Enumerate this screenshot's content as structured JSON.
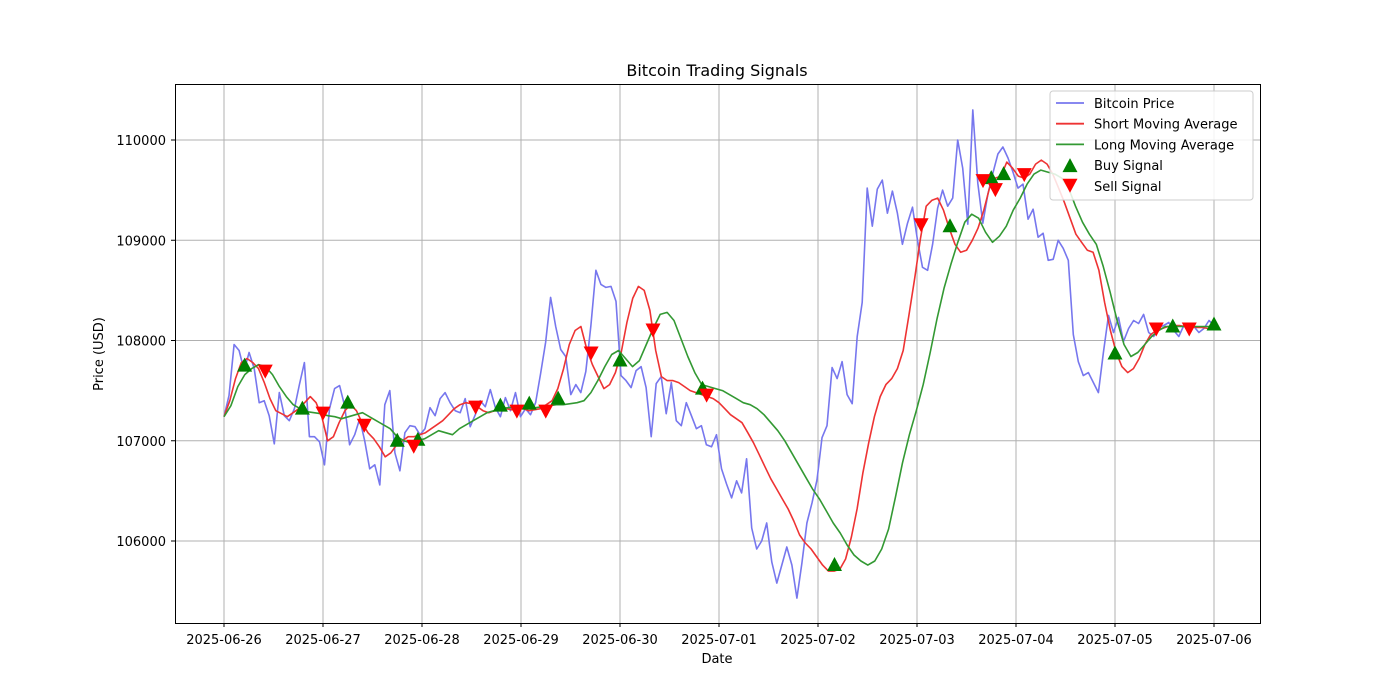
{
  "chart_data": {
    "type": "line",
    "title": "Bitcoin Trading Signals",
    "xlabel": "Date",
    "ylabel": "Price (USD)",
    "x_start": "2025-06-26T00:00",
    "x_step_hours": 2,
    "xlim": [
      "2025-06-25T12:00",
      "2025-07-06T11:00"
    ],
    "ylim": [
      105180,
      110550
    ],
    "x_ticks": [
      "2025-06-26",
      "2025-06-27",
      "2025-06-28",
      "2025-06-29",
      "2025-06-30",
      "2025-07-01",
      "2025-07-02",
      "2025-07-03",
      "2025-07-04",
      "2025-07-05",
      "2025-07-06"
    ],
    "y_ticks": [
      106000,
      107000,
      108000,
      109000,
      110000
    ],
    "grid": true,
    "legend_position": "upper right",
    "series": [
      {
        "name": "Bitcoin Price",
        "color": "#7777ee",
        "values": [
          107240,
          107450,
          107960,
          107900,
          107700,
          107880,
          107720,
          107380,
          107400,
          107250,
          106970,
          107480,
          107250,
          107200,
          107320,
          107560,
          107780,
          107040,
          107040,
          106990,
          106760,
          107320,
          107520,
          107550,
          107350,
          106960,
          107060,
          107220,
          107000,
          106720,
          106760,
          106560,
          107360,
          107500,
          106880,
          106700,
          107080,
          107150,
          107140,
          107060,
          107120,
          107330,
          107250,
          107420,
          107480,
          107380,
          107300,
          107280,
          107420,
          107140,
          107260,
          107400,
          107340,
          107510,
          107330,
          107240,
          107430,
          107300,
          107480,
          107240,
          107320,
          107260,
          107380,
          107670,
          107980,
          108430,
          108140,
          107910,
          107840,
          107460,
          107560,
          107480,
          107690,
          108150,
          108700,
          108560,
          108530,
          108540,
          108390,
          107650,
          107600,
          107530,
          107700,
          107740,
          107530,
          107040,
          107570,
          107640,
          107270,
          107580,
          107200,
          107150,
          107380,
          107250,
          107120,
          107150,
          106960,
          106940,
          107060,
          106720,
          106570,
          106430,
          106600,
          106480,
          106820,
          106130,
          105920,
          106000,
          106180,
          105790,
          105580,
          105760,
          105940,
          105760,
          105430,
          105780,
          106180,
          106380,
          106610,
          107030,
          107150
        ],
        "values_tail": [
          107730,
          107620,
          107790,
          107460,
          107370,
          108040,
          108380,
          109520,
          109140,
          109510,
          109600,
          109270,
          109490,
          109270,
          108960,
          109170,
          109330,
          109000,
          108730,
          108700,
          108960,
          109320,
          109500,
          109340,
          109420,
          110000,
          109720,
          109160,
          110300,
          109570,
          109170,
          109460,
          109670,
          109860,
          109930,
          109820,
          109680,
          109520,
          109560,
          109210,
          109310,
          109030,
          109070,
          108800,
          108810,
          109000,
          108920,
          108800,
          108060,
          107790,
          107650,
          107680,
          107580,
          107480,
          107880,
          108250,
          108080,
          108230,
          107990,
          108120,
          108200,
          108170,
          108260,
          108080,
          108040,
          108130,
          108150,
          108180,
          108100,
          108040,
          108150,
          108110,
          108140,
          108080,
          108120,
          108200,
          108150
        ],
        "note": "values_tail continues values: together they form the full hourly-ish price trace across the date range"
      },
      {
        "name": "Short Moving Average",
        "color": "#ee3333",
        "values": [
          107240,
          107400,
          107620,
          107780,
          107820,
          107780,
          107720,
          107580,
          107420,
          107300,
          107270,
          107240,
          107280,
          107320,
          107380,
          107440,
          107380,
          107240,
          107000,
          107040,
          107180,
          107300,
          107360,
          107300,
          107180,
          107080,
          107020,
          106940,
          106840,
          106880,
          106960,
          107000,
          107040,
          107040,
          107060,
          107080,
          107120,
          107160,
          107200,
          107260,
          107320,
          107360,
          107380,
          107370,
          107340,
          107300,
          107280,
          107300,
          107330,
          107320,
          107310,
          107330,
          107320,
          107300,
          107310,
          107320,
          107360,
          107400,
          107520,
          107720,
          107960,
          108100,
          108140,
          107920,
          107760,
          107640,
          107520,
          107560,
          107680,
          107880,
          108180,
          108420,
          108540,
          108500,
          108300,
          107900,
          107640,
          107600,
          107600,
          107580,
          107540,
          107500,
          107480,
          107460,
          107440,
          107420,
          107380,
          107320,
          107260,
          107220,
          107180,
          107080,
          106980,
          106860,
          106740,
          106620,
          106520,
          106420,
          106320,
          106200,
          106060,
          105980,
          105920,
          105840,
          105760,
          105700,
          105700,
          105720,
          105820,
          106040,
          106320,
          106680,
          106980,
          107240,
          107440,
          107560,
          107620,
          107720,
          107900,
          108250
        ],
        "values_tail": [
          108620,
          109020,
          109340,
          109400,
          109420,
          109300,
          109120,
          108960,
          108880,
          108900,
          109000,
          109120,
          109300,
          109520,
          109620,
          109640,
          109780,
          109720,
          109640,
          109620,
          109660,
          109760,
          109800,
          109760,
          109660,
          109520,
          109380,
          109220,
          109060,
          108980,
          108900,
          108880,
          108700,
          108380,
          108100,
          107880,
          107740,
          107680,
          107720,
          107820,
          107960,
          108060,
          108100,
          108120,
          108140,
          108150,
          108150,
          108140,
          108140,
          108130,
          108130,
          108120,
          108120
        ]
      },
      {
        "name": "Long Moving Average",
        "color": "#339933",
        "values": [
          107240,
          107350,
          107540,
          107660,
          107720,
          107760,
          107740,
          107660,
          107540,
          107440,
          107360,
          107320,
          107290,
          107280,
          107270,
          107250,
          107240,
          107220,
          107240,
          107260,
          107280,
          107240,
          107200,
          107160,
          107120,
          107040,
          107000,
          106980,
          107000,
          107020,
          107060,
          107100,
          107080,
          107060,
          107120,
          107160,
          107200,
          107240,
          107280,
          107300,
          107320,
          107330,
          107340,
          107350,
          107340,
          107330,
          107340,
          107350,
          107360,
          107360,
          107370,
          107380,
          107400,
          107480,
          107600,
          107740,
          107860,
          107900,
          107820,
          107740,
          107800,
          107960,
          108120,
          108260,
          108280,
          108200,
          108020,
          107840,
          107680,
          107560,
          107540,
          107520,
          107500,
          107460,
          107420,
          107380,
          107360,
          107320,
          107260,
          107180,
          107100,
          107000,
          106880,
          106760,
          106640,
          106520,
          106420,
          106300,
          106180,
          106080,
          105960,
          105860,
          105800,
          105760,
          105800,
          105920,
          106120,
          106440,
          106780,
          107060,
          107300,
          107560,
          107880,
          108220,
          108520,
          108760,
          108980,
          109180,
          109260,
          109220,
          109080,
          108980,
          109040,
          109140,
          109300,
          109420,
          109560,
          109660,
          109700,
          109680
        ],
        "values_tail": [
          109660,
          109620,
          109520,
          109340,
          109180,
          109060,
          108960,
          108740,
          108480,
          108200,
          107960,
          107840,
          107880,
          107960,
          108040,
          108100,
          108140,
          108140,
          108140,
          108140,
          108140,
          108140,
          108140,
          108140
        ]
      }
    ],
    "buy_signals": [
      {
        "x": "2025-06-26T05:00",
        "y": 107750
      },
      {
        "x": "2025-06-26T19:00",
        "y": 107320
      },
      {
        "x": "2025-06-27T06:00",
        "y": 107380
      },
      {
        "x": "2025-06-27T18:00",
        "y": 107000
      },
      {
        "x": "2025-06-27T23:00",
        "y": 107010
      },
      {
        "x": "2025-06-28T19:00",
        "y": 107350
      },
      {
        "x": "2025-06-29T02:00",
        "y": 107370
      },
      {
        "x": "2025-06-29T09:00",
        "y": 107420
      },
      {
        "x": "2025-06-30T00:00",
        "y": 107800
      },
      {
        "x": "2025-06-30T20:00",
        "y": 107520
      },
      {
        "x": "2025-07-02T04:00",
        "y": 105760
      },
      {
        "x": "2025-07-03T08:00",
        "y": 109140
      },
      {
        "x": "2025-07-03T18:00",
        "y": 109620
      },
      {
        "x": "2025-07-03T21:00",
        "y": 109660
      },
      {
        "x": "2025-07-05T00:00",
        "y": 107870
      },
      {
        "x": "2025-07-05T14:00",
        "y": 108140
      },
      {
        "x": "2025-07-06T00:00",
        "y": 108160
      }
    ],
    "sell_signals": [
      {
        "x": "2025-06-26T10:00",
        "y": 107700
      },
      {
        "x": "2025-06-27T00:00",
        "y": 107280
      },
      {
        "x": "2025-06-27T10:00",
        "y": 107160
      },
      {
        "x": "2025-06-27T22:00",
        "y": 106950
      },
      {
        "x": "2025-06-28T13:00",
        "y": 107340
      },
      {
        "x": "2025-06-28T23:00",
        "y": 107300
      },
      {
        "x": "2025-06-29T06:00",
        "y": 107300
      },
      {
        "x": "2025-06-29T17:00",
        "y": 107880
      },
      {
        "x": "2025-06-30T08:00",
        "y": 108110
      },
      {
        "x": "2025-06-30T21:00",
        "y": 107460
      },
      {
        "x": "2025-07-03T01:00",
        "y": 109160
      },
      {
        "x": "2025-07-03T16:00",
        "y": 109600
      },
      {
        "x": "2025-07-03T19:00",
        "y": 109510
      },
      {
        "x": "2025-07-04T02:00",
        "y": 109660
      },
      {
        "x": "2025-07-05T10:00",
        "y": 108120
      },
      {
        "x": "2025-07-05T18:00",
        "y": 108120
      }
    ],
    "legend": [
      {
        "label": "Bitcoin Price",
        "kind": "line",
        "color": "#7777ee"
      },
      {
        "label": "Short Moving Average",
        "kind": "line",
        "color": "#ee3333"
      },
      {
        "label": "Long Moving Average",
        "kind": "line",
        "color": "#339933"
      },
      {
        "label": "Buy Signal",
        "kind": "triangle-up",
        "color": "#008000"
      },
      {
        "label": "Sell Signal",
        "kind": "triangle-down",
        "color": "#ff0000"
      }
    ]
  }
}
